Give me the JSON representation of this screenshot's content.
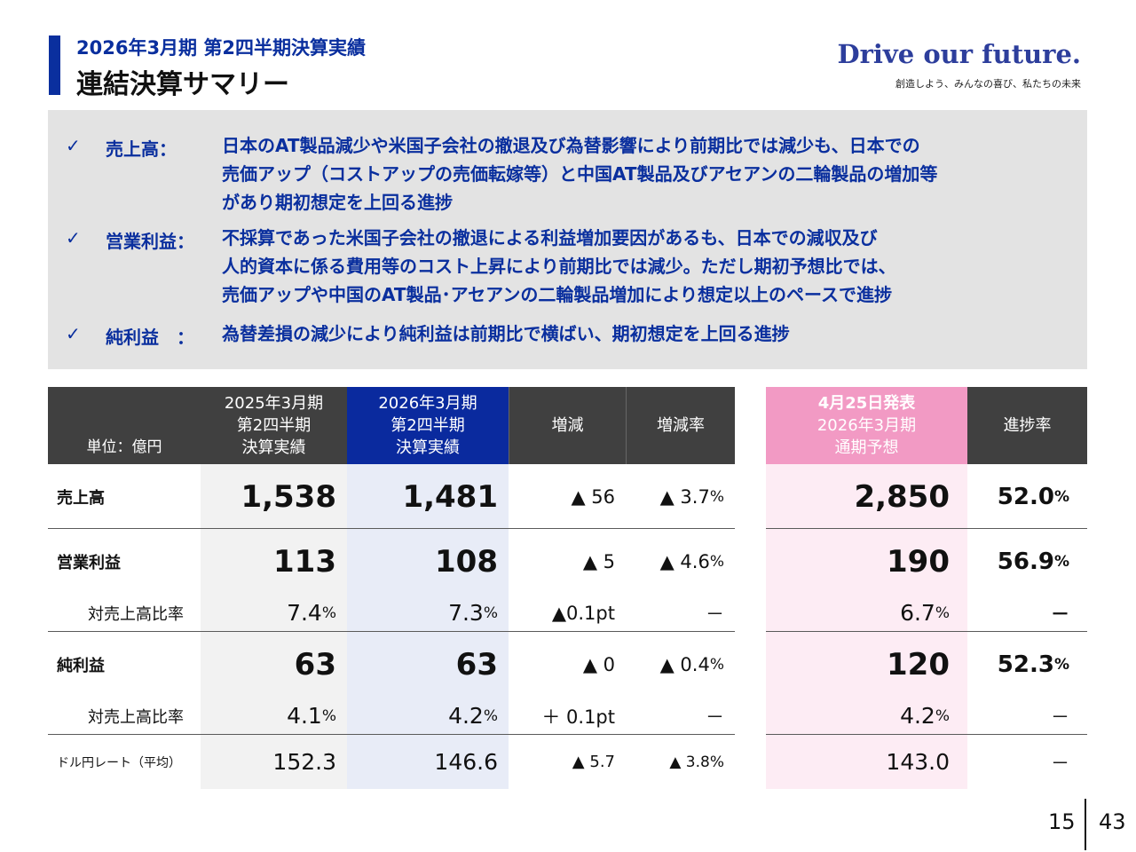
{
  "header": {
    "subtitle": "2026年3月期 第2四半期決算実績",
    "title": "連結決算サマリー",
    "slogan": "Drive our future.",
    "slogan_sub": "創造しよう、みんなの喜び、私たちの未来"
  },
  "summary": {
    "check": "✓",
    "items": [
      {
        "label": "売上高：",
        "lines": [
          "日本のAT製品減少や米国子会社の撤退及び為替影響により前期比では減少も、日本での",
          "売価アップ（コストアップの売価転嫁等）と中国AT製品及びアセアンの二輪製品の増加等",
          "があり期初想定を上回る進捗"
        ]
      },
      {
        "label": "営業利益：",
        "lines": [
          "不採算であった米国子会社の撤退による利益増加要因があるも、日本での減収及び",
          "人的資本に係る費用等のコスト上昇により前期比では減少。ただし期初予想比では、",
          "売価アップや中国のAT製品･アセアンの二輪製品増加により想定以上のペースで進捗"
        ]
      },
      {
        "label": "純利益　：",
        "lines": [
          "為替差損の減少により純利益は前期比で横ばい、期初想定を上回る進捗"
        ]
      }
    ]
  },
  "table": {
    "unit_label": "単位：億円",
    "headers": {
      "prev": [
        "2025年3月期",
        "第2四半期",
        "決算実績"
      ],
      "curr": [
        "2026年3月期",
        "第2四半期",
        "決算実績"
      ],
      "change": "増減",
      "rate": "増減率",
      "forecast": [
        "4月25日発表",
        "2026年3月期",
        "通期予想"
      ],
      "progress": "進捗率"
    },
    "rows": {
      "sales": {
        "label": "売上高",
        "prev": "1,538",
        "curr": "1,481",
        "change": "▲ 56",
        "rate": "▲ 3.7",
        "rate_unit": "%",
        "forecast": "2,850",
        "progress": "52.0",
        "progress_unit": "%"
      },
      "op": {
        "label": "営業利益",
        "prev": "113",
        "curr": "108",
        "change": "▲ 5",
        "rate": "▲ 4.6",
        "rate_unit": "%",
        "forecast": "190",
        "progress": "56.9",
        "progress_unit": "%"
      },
      "op_ratio": {
        "label": "対売上高比率",
        "prev": "7.4",
        "prev_unit": "%",
        "curr": "7.3",
        "curr_unit": "%",
        "change": "▲0.1pt",
        "rate": "－",
        "forecast": "6.7",
        "forecast_unit": "%",
        "progress": "－"
      },
      "net": {
        "label": "純利益",
        "prev": "63",
        "curr": "63",
        "change": "▲ 0",
        "rate": "▲ 0.4",
        "rate_unit": "%",
        "forecast": "120",
        "progress": "52.3",
        "progress_unit": "%"
      },
      "net_ratio": {
        "label": "対売上高比率",
        "prev": "4.1",
        "prev_unit": "%",
        "curr": "4.2",
        "curr_unit": "%",
        "change": "＋ 0.1pt",
        "rate": "－",
        "forecast": "4.2",
        "forecast_unit": "%",
        "progress": "－"
      },
      "fx": {
        "label": "ドル円レート（平均）",
        "prev": "152.3",
        "curr": "146.6",
        "change": "▲ 5.7",
        "rate": "▲ 3.8%",
        "forecast": "143.0",
        "progress": "－"
      }
    }
  },
  "page": {
    "current": "15",
    "total": "43"
  }
}
